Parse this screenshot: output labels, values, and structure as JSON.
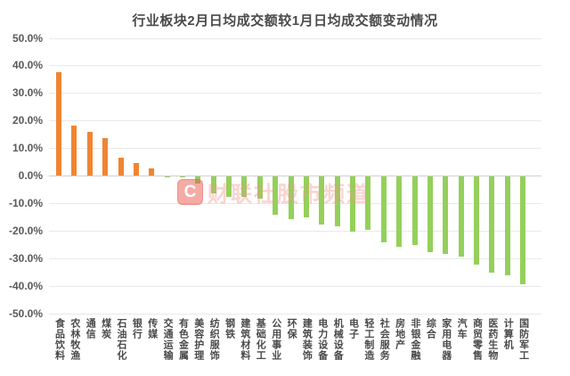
{
  "chart_data": {
    "type": "bar",
    "title": "行业板块2月日均成交额较1月日均成交额变动情况",
    "categories": [
      "食品饮料",
      "农林牧渔",
      "通信",
      "煤炭",
      "石油石化",
      "银行",
      "传媒",
      "交通运输",
      "有色金属",
      "美容护理",
      "纺织服饰",
      "钢铁",
      "建筑材料",
      "基础化工",
      "公用事业",
      "环保",
      "建筑装饰",
      "电力设备",
      "机械设备",
      "电子",
      "轻工制造",
      "社会服务",
      "房地产",
      "非银金融",
      "综合",
      "家用电器",
      "汽车",
      "商贸零售",
      "医药生物",
      "计算机",
      "国防军工"
    ],
    "values": [
      37.5,
      18,
      16,
      13.5,
      6.5,
      4.5,
      2.7,
      -0.1,
      -0.3,
      -2.5,
      -6,
      -7.5,
      -7.5,
      -8,
      -14,
      -15.5,
      -15,
      -17.5,
      -18,
      -20,
      -19.5,
      -24,
      -25.5,
      -25,
      -27.5,
      -28,
      -29,
      -32,
      -35,
      -36,
      -39
    ],
    "xlabel": "",
    "ylabel": "",
    "ylim": [
      -50,
      50
    ],
    "ytick_values": [
      50,
      40,
      30,
      20,
      10,
      0,
      -10,
      -20,
      -30,
      -40,
      -50
    ],
    "ytick_labels": [
      "50.0%",
      "40.0%",
      "30.0%",
      "20.0%",
      "10.0%",
      "0.0%",
      "-10.0%",
      "-20.0%",
      "-30.0%",
      "-40.0%",
      "-50.0%"
    ],
    "grid": true,
    "legend": "none",
    "positive_color": "#ef8532",
    "negative_color": "#94d05a"
  },
  "watermark": {
    "logo_letter": "C",
    "text": "财联社股市频道"
  }
}
